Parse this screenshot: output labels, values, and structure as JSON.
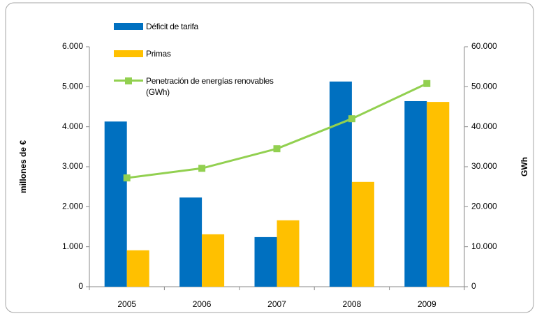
{
  "chart_data": {
    "type": "bar",
    "categories": [
      "2005",
      "2006",
      "2007",
      "2008",
      "2009"
    ],
    "series": [
      {
        "name": "Déficit de tarifa",
        "color": "#0070c0",
        "values": [
          4130,
          2230,
          1240,
          5130,
          4640
        ]
      },
      {
        "name": "Primas",
        "color": "#ffc000",
        "values": [
          910,
          1310,
          1660,
          2620,
          4620
        ]
      },
      {
        "name": "Penetración de energías renovables (GWh)",
        "color": "#92d050",
        "type": "line",
        "axis": "y2",
        "values": [
          27200,
          29600,
          34500,
          42000,
          50800
        ]
      }
    ],
    "y_label": "millones de €",
    "y2_label": "GWh",
    "ylim": [
      0,
      6000
    ],
    "yticks": [
      0,
      {
        "value": 1000,
        "label": "1.000"
      },
      {
        "value": 2000,
        "label": "2.000"
      },
      {
        "value": 3000,
        "label": "3.000"
      },
      {
        "value": 4000,
        "label": "4.000"
      },
      {
        "value": 5000,
        "label": "5.000"
      },
      {
        "value": 6000,
        "label": "6.000"
      }
    ],
    "y2lim": [
      0,
      60000
    ],
    "y2ticks": [
      0,
      {
        "value": 10000,
        "label": "10.000"
      },
      {
        "value": 20000,
        "label": "20.000"
      },
      {
        "value": 30000,
        "label": "30.000"
      },
      {
        "value": 40000,
        "label": "40.000"
      },
      {
        "value": 50000,
        "label": "50.000"
      },
      {
        "value": 60000,
        "label": "60.000"
      }
    ],
    "legend": "top-left",
    "grid": false
  }
}
